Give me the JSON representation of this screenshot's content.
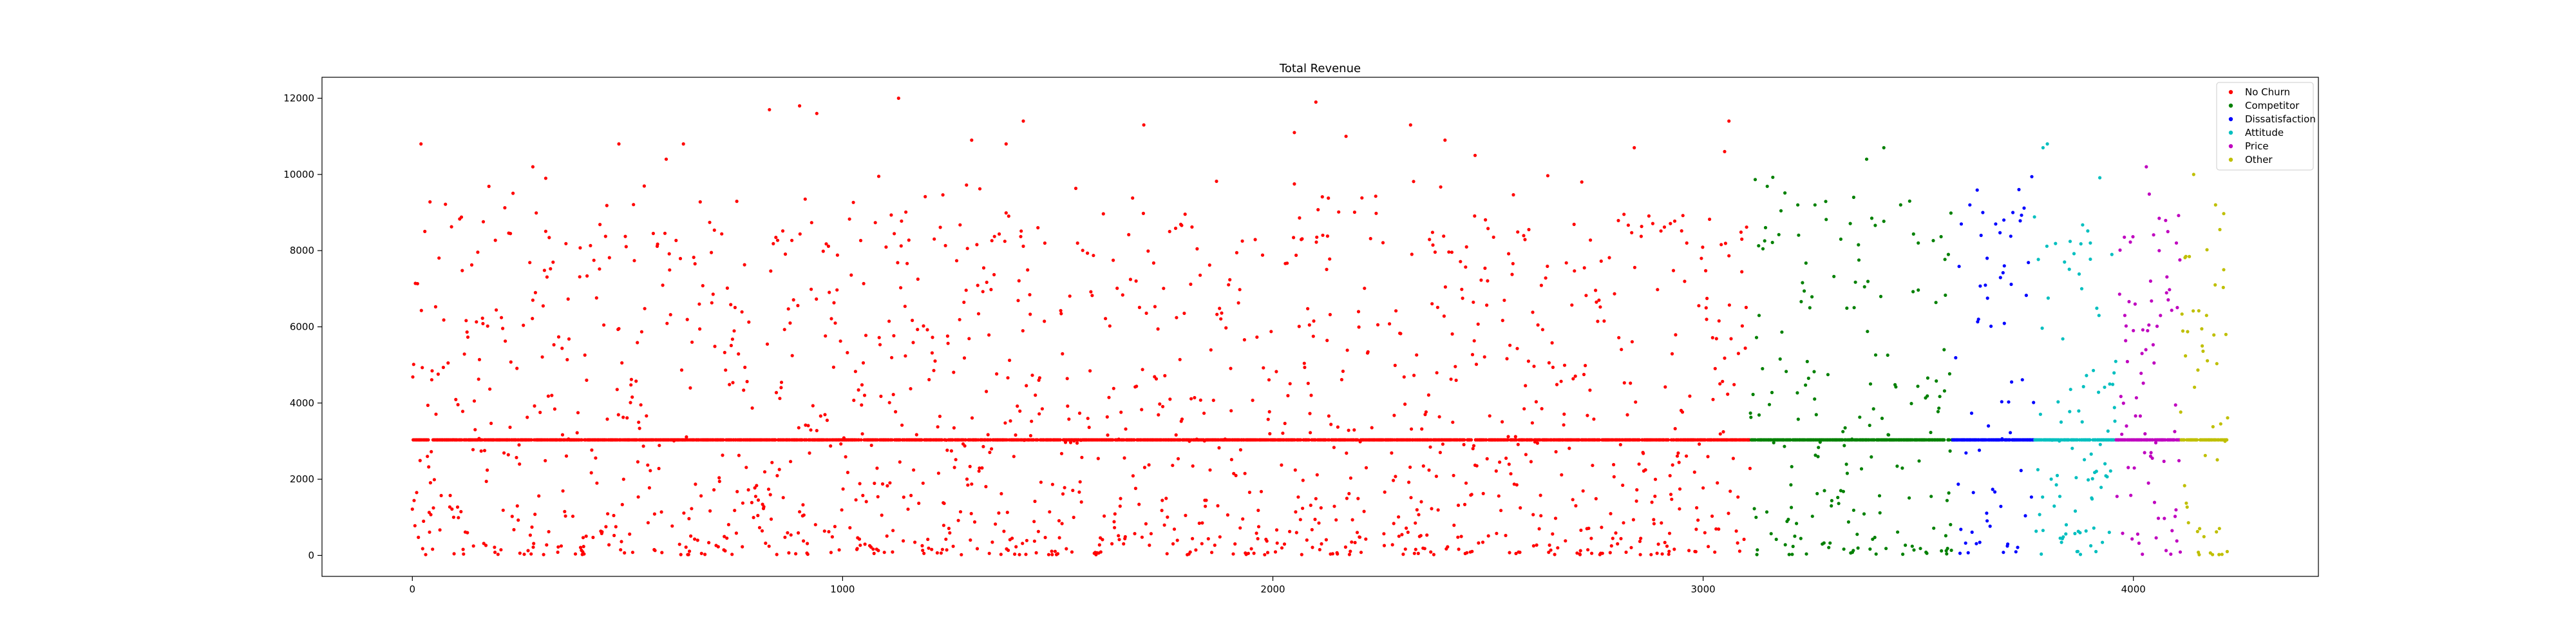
{
  "chart_data": {
    "type": "scatter",
    "title": "Total Revenue",
    "xlabel": "",
    "ylabel": "",
    "xlim": [
      -210,
      4430
    ],
    "ylim": [
      -550,
      12550
    ],
    "xticks": [
      0,
      1000,
      2000,
      3000,
      4000
    ],
    "yticks": [
      0,
      2000,
      4000,
      6000,
      8000,
      10000,
      12000
    ],
    "grid": false,
    "legend_position": "top-right",
    "baseline_value": 3034,
    "series": [
      {
        "name": "No Churn",
        "color": "#ff0000",
        "x_range": [
          0,
          3110
        ],
        "band_density": 0.55,
        "anchor_points": [
          [
            20,
            10800
          ],
          [
            280,
            10200
          ],
          [
            310,
            9900
          ],
          [
            480,
            10800
          ],
          [
            590,
            10400
          ],
          [
            630,
            10800
          ],
          [
            830,
            11700
          ],
          [
            900,
            11800
          ],
          [
            940,
            11600
          ],
          [
            1130,
            12000
          ],
          [
            1300,
            10900
          ],
          [
            1380,
            10800
          ],
          [
            1420,
            11400
          ],
          [
            1700,
            11300
          ],
          [
            2050,
            11100
          ],
          [
            2100,
            11900
          ],
          [
            2170,
            11000
          ],
          [
            2320,
            11300
          ],
          [
            2400,
            10900
          ],
          [
            2470,
            10500
          ],
          [
            2840,
            10700
          ],
          [
            3060,
            11400
          ],
          [
            3050,
            10600
          ],
          [
            3090,
            8300
          ]
        ]
      },
      {
        "name": "Competitor",
        "color": "#008000",
        "x_range": [
          3110,
          3580
        ],
        "band_density": 0.6,
        "anchor_points": [
          [
            3130,
            6300
          ],
          [
            3220,
            9200
          ],
          [
            3260,
            9200
          ],
          [
            3320,
            8300
          ],
          [
            3350,
            9400
          ],
          [
            3380,
            10400
          ],
          [
            3420,
            10700
          ],
          [
            3480,
            9300
          ],
          [
            3500,
            8200
          ],
          [
            3570,
            7900
          ],
          [
            3560,
            5400
          ]
        ]
      },
      {
        "name": "Dissatisfaction",
        "color": "#0000ff",
        "x_range": [
          3580,
          3770
        ],
        "band_density": 0.6,
        "anchor_points": [
          [
            3600,
            8700
          ],
          [
            3620,
            9200
          ],
          [
            3650,
            9000
          ],
          [
            3680,
            8700
          ],
          [
            3720,
            9000
          ],
          [
            3660,
            7800
          ],
          [
            3700,
            7600
          ],
          [
            3640,
            6200
          ]
        ]
      },
      {
        "name": "Attitude",
        "color": "#00bfbf",
        "x_range": [
          3770,
          3960
        ],
        "band_density": 0.55,
        "anchor_points": [
          [
            3790,
            10700
          ],
          [
            3800,
            10800
          ],
          [
            3840,
            7700
          ],
          [
            3900,
            8200
          ],
          [
            3880,
            7000
          ],
          [
            3950,
            7900
          ],
          [
            3920,
            6300
          ]
        ]
      },
      {
        "name": "Price",
        "color": "#bf00bf",
        "x_range": [
          3960,
          4110
        ],
        "band_density": 0.55,
        "anchor_points": [
          [
            3980,
            6300
          ],
          [
            4000,
            5900
          ],
          [
            4040,
            7200
          ],
          [
            4060,
            8000
          ],
          [
            4080,
            8500
          ],
          [
            4100,
            8200
          ],
          [
            4030,
            10200
          ],
          [
            4020,
            5300
          ]
        ]
      },
      {
        "name": "Other",
        "color": "#bfbf00",
        "x_range": [
          4110,
          4220
        ],
        "band_density": 0.55,
        "anchor_points": [
          [
            4140,
            10000
          ],
          [
            4190,
            7100
          ],
          [
            4210,
            7500
          ],
          [
            4215,
            5800
          ],
          [
            4170,
            6300
          ],
          [
            4160,
            5500
          ]
        ]
      }
    ]
  }
}
